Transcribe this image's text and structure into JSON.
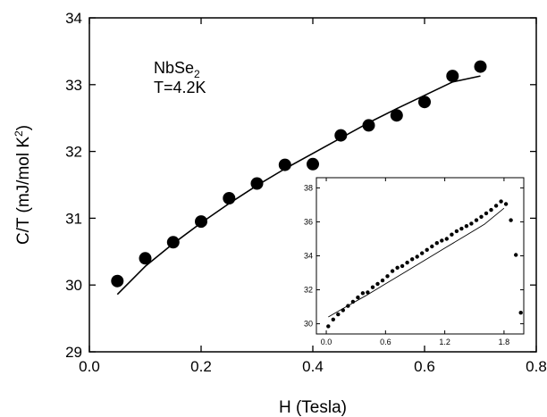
{
  "chart_data": [
    {
      "type": "scatter",
      "xlabel": "H (Tesla)",
      "ylabel_main": "C/T (mJ/mol K",
      "ylabel_sup": "2",
      "ylabel_close": ")",
      "xlim": [
        0.0,
        0.8
      ],
      "ylim": [
        29,
        34
      ],
      "xticks": [
        0.0,
        0.2,
        0.4,
        0.6,
        0.8
      ],
      "xtick_labels": [
        "0.0",
        "0.2",
        "0.4",
        "0.6",
        "0.8"
      ],
      "yticks": [
        29,
        30,
        31,
        32,
        33,
        34
      ],
      "ytick_labels": [
        "29",
        "30",
        "31",
        "32",
        "33",
        "34"
      ],
      "annotation": {
        "line1_main": "NbSe",
        "line1_sub": "2",
        "line2": "T=4.2K"
      },
      "grid": false,
      "series": [
        {
          "kind": "points",
          "x": [
            0.05,
            0.1,
            0.15,
            0.2,
            0.25,
            0.3,
            0.35,
            0.4,
            0.45,
            0.5,
            0.55,
            0.6,
            0.65,
            0.7
          ],
          "y": [
            30.06,
            30.4,
            30.64,
            30.95,
            31.3,
            31.52,
            31.8,
            31.81,
            32.24,
            32.39,
            32.54,
            32.74,
            33.13,
            33.27
          ]
        },
        {
          "kind": "fit-line",
          "x": [
            0.05,
            0.1,
            0.15,
            0.2,
            0.25,
            0.3,
            0.35,
            0.4,
            0.45,
            0.5,
            0.55,
            0.6,
            0.65,
            0.7
          ],
          "y": [
            29.86,
            30.28,
            30.62,
            30.93,
            31.22,
            31.49,
            31.74,
            31.97,
            32.2,
            32.43,
            32.64,
            32.84,
            33.04,
            33.13
          ]
        }
      ]
    },
    {
      "type": "scatter",
      "xlim": [
        -0.1,
        2.0
      ],
      "ylim": [
        29.4,
        38.6
      ],
      "xticks": [
        0.0,
        0.6,
        1.2,
        1.8
      ],
      "xtick_labels": [
        "0.0",
        "0.6",
        "1.2",
        "1.8"
      ],
      "yticks": [
        30,
        32,
        34,
        36,
        38
      ],
      "ytick_labels": [
        "30",
        "32",
        "34",
        "36",
        "38"
      ],
      "grid": false,
      "series": [
        {
          "kind": "points",
          "x": [
            0.02,
            0.07,
            0.12,
            0.17,
            0.22,
            0.27,
            0.32,
            0.37,
            0.42,
            0.47,
            0.52,
            0.57,
            0.62,
            0.67,
            0.72,
            0.77,
            0.82,
            0.87,
            0.92,
            0.97,
            1.02,
            1.07,
            1.12,
            1.17,
            1.22,
            1.27,
            1.32,
            1.37,
            1.42,
            1.47,
            1.52,
            1.57,
            1.62,
            1.67,
            1.72,
            1.77,
            1.82,
            1.87,
            1.92,
            1.97
          ],
          "y": [
            29.85,
            30.25,
            30.55,
            30.8,
            31.05,
            31.3,
            31.55,
            31.8,
            31.85,
            32.15,
            32.35,
            32.55,
            32.8,
            33.1,
            33.3,
            33.4,
            33.6,
            33.8,
            33.95,
            34.15,
            34.35,
            34.55,
            34.75,
            34.9,
            35.0,
            35.25,
            35.45,
            35.6,
            35.75,
            35.9,
            36.1,
            36.3,
            36.5,
            36.7,
            36.95,
            37.2,
            37.05,
            36.1,
            34.05,
            30.65
          ]
        },
        {
          "kind": "fit-line",
          "x": [
            0.02,
            0.2,
            0.4,
            0.6,
            0.8,
            1.0,
            1.2,
            1.4,
            1.6,
            1.8
          ],
          "y": [
            30.4,
            31.0,
            31.65,
            32.35,
            33.05,
            33.75,
            34.45,
            35.15,
            35.85,
            36.8
          ]
        }
      ]
    }
  ]
}
